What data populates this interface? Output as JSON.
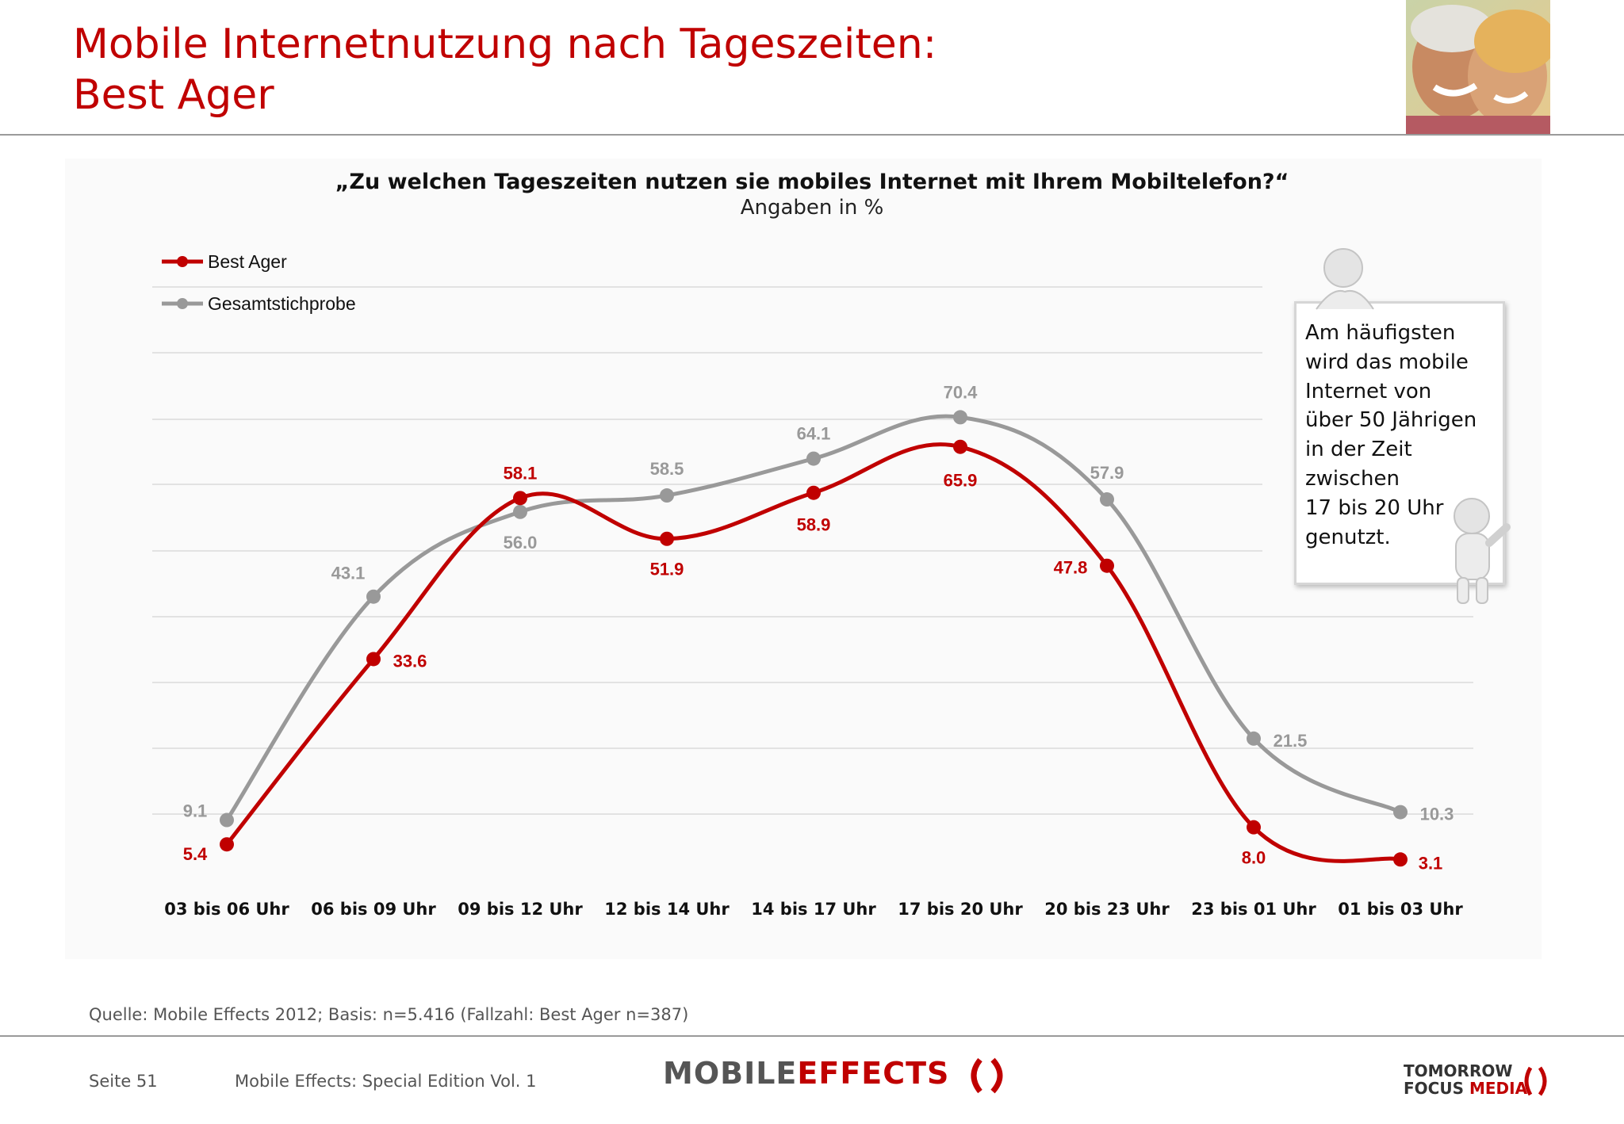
{
  "header": {
    "title_line1": "Mobile Internetnutzung nach Tageszeiten:",
    "title_line2": "Best Ager"
  },
  "chart_data": {
    "type": "line",
    "title": "„Zu welchen Tageszeiten nutzen sie mobiles Internet mit Ihrem Mobiltelefon?“",
    "subtitle": "Angaben in %",
    "categories": [
      "03 bis 06 Uhr",
      "06 bis 09 Uhr",
      "09 bis 12 Uhr",
      "12 bis 14 Uhr",
      "14 bis 17 Uhr",
      "17 bis 20 Uhr",
      "20 bis 23 Uhr",
      "23 bis 01 Uhr",
      "01 bis 03 Uhr"
    ],
    "series": [
      {
        "name": "Best Ager",
        "color": "#c00000",
        "values": [
          5.4,
          33.6,
          58.1,
          51.9,
          58.9,
          65.9,
          47.8,
          8.0,
          3.1
        ]
      },
      {
        "name": "Gesamtstichprobe",
        "color": "#999999",
        "values": [
          9.1,
          43.1,
          56.0,
          58.5,
          64.1,
          70.4,
          57.9,
          21.5,
          10.3
        ]
      }
    ],
    "ylim": [
      0,
      100
    ],
    "grid": true,
    "legend": "top-left"
  },
  "callout": {
    "lines": [
      "Am häufigsten",
      "wird das mobile",
      "Internet von",
      "über 50 Jährigen",
      "in der Zeit",
      "zwischen",
      "17 bis 20 Uhr",
      "genutzt."
    ]
  },
  "footer": {
    "source": "Quelle: Mobile Effects 2012; Basis: n=5.416 (Fallzahl: Best Ager n=387)",
    "page": "Seite 51",
    "edition": "Mobile Effects: Special Edition Vol. 1",
    "logo_mobile": "MOBILE",
    "logo_effects": "EFFECTS",
    "logo_tomorrow": "TOMORROW",
    "logo_focus": "FOCUS",
    "logo_media": "MEDIA"
  }
}
